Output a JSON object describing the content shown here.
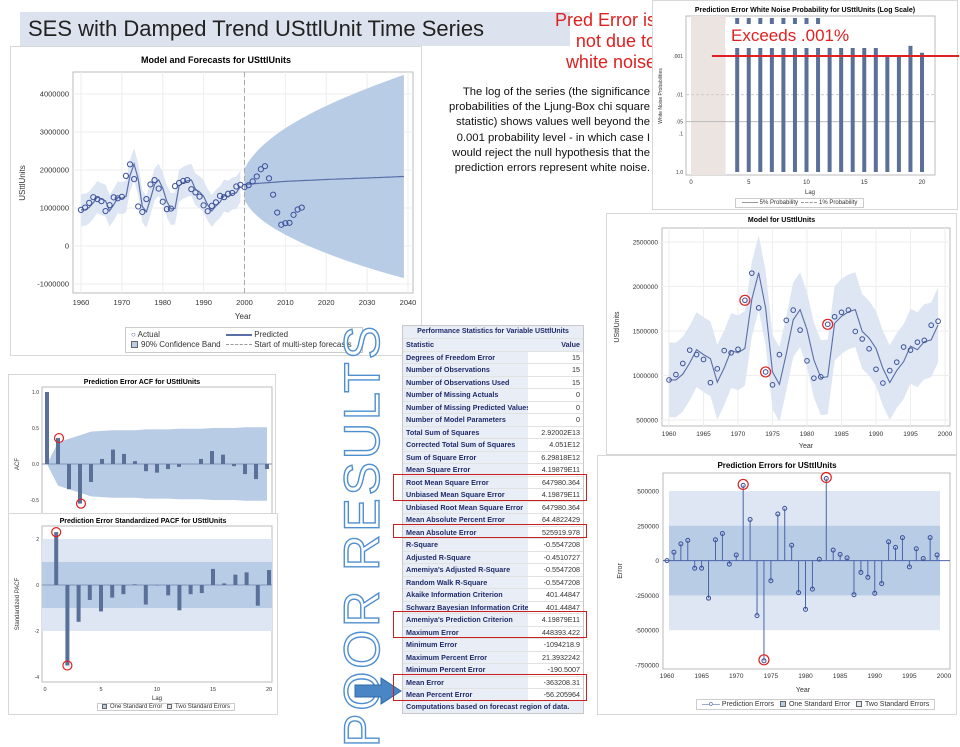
{
  "slide": {
    "title": "SES with Damped Trend USttlUnit Time Series",
    "red_note": [
      "Pred Error is",
      "not due to",
      "white noise"
    ],
    "exceeds_note": "Exceeds .001%",
    "paragraph": "The log of the series (the significance probabilities of the Ljung-Box chi square statistic) shows values well beyond the 0.001 probability level - in which case I would reject the null hypothesis that the prediction errors represent white noise.",
    "poor_results": "POOR RESULTS",
    "colors": {
      "accent_red": "#e02020",
      "series_blue": "#5a6fa8",
      "band_blue": "#b8cce6",
      "poor_text": "#4f8fd0",
      "arrow": "#4a86c5"
    }
  },
  "chart_data": [
    {
      "id": "forecast",
      "type": "line",
      "title": "Model and Forecasts for USttlUnits",
      "xlabel": "Year",
      "ylabel": "USttlUnits",
      "xlim": [
        1960,
        2040
      ],
      "ylim": [
        -1000000,
        4500000
      ],
      "xticks": [
        1960,
        1970,
        1980,
        1990,
        2000,
        2010,
        2020,
        2030,
        2040
      ],
      "yticks": [
        -1000000,
        0,
        1000000,
        2000000,
        3000000,
        4000000
      ],
      "forecast_start": 2000,
      "actual_years_start": 1960,
      "actual": [
        950000,
        1010000,
        1135000,
        1285000,
        1235000,
        1180000,
        920000,
        1075000,
        1280000,
        1255000,
        1295000,
        1845000,
        2150000,
        1760000,
        1040000,
        895000,
        1235000,
        1620000,
        1735000,
        1510000,
        1165000,
        970000,
        985000,
        1575000,
        1660000,
        1710000,
        1735000,
        1495000,
        1410000,
        1300000,
        1070000,
        915000,
        1055000,
        1150000,
        1320000,
        1285000,
        1375000,
        1395000,
        1565000,
        1610000,
        1550000,
        1600000,
        1700000,
        1830000,
        2020000,
        2100000,
        1780000,
        1350000,
        880000,
        560000,
        600000,
        610000,
        820000,
        960000,
        1010000
      ],
      "forecast": {
        "years": [
          2000,
          2010,
          2020,
          2030,
          2039
        ],
        "values": [
          1620000,
          1700000,
          1750000,
          1790000,
          1830000
        ]
      },
      "forecast_band_end": [
        -850000,
        4500000
      ],
      "legend": [
        "Actual",
        "Predicted",
        "90% Confidence Band",
        "Start of multi-step forecasts"
      ],
      "legend_position": "bottom"
    },
    {
      "id": "whitenoise",
      "type": "bar",
      "title": "Prediction Error White Noise Probability for USttlUnits (Log Scale)",
      "xlabel": "Lag",
      "ylabel": "White Noise Probabilities",
      "yscale": "log-reversed",
      "xticks": [
        0,
        5,
        10,
        15,
        20
      ],
      "ytick_labels": [
        ".001",
        ".01",
        ".05",
        ".1",
        "1.0"
      ],
      "ytick_values": [
        0.001,
        0.01,
        0.05,
        0.1,
        1.0
      ],
      "lags": [
        4,
        5,
        6,
        7,
        8,
        9,
        10,
        11,
        12,
        13,
        14,
        15,
        16,
        17,
        18,
        19,
        20
      ],
      "probabilities": [
        1e-05,
        1e-05,
        1e-05,
        1e-05,
        1e-05,
        1e-05,
        1e-05,
        1e-05,
        0.00056,
        0.00056,
        0.0006,
        0.00057,
        0.00056,
        0.00095,
        0.00097,
        0.00055,
        0.00083
      ],
      "shaded_lags": [
        0,
        3
      ],
      "reference_lines": {
        "5% Probability": 0.05,
        "1% Probability": 0.01
      },
      "legend": [
        "5% Probability",
        "1% Probability"
      ],
      "highlight_level": 0.001
    },
    {
      "id": "model",
      "type": "line",
      "title": "Model for USttlUnits",
      "xlabel": "Year",
      "ylabel": "USttlUnits",
      "xlim": [
        1960,
        2000
      ],
      "ylim": [
        450000,
        2600000
      ],
      "xticks": [
        1960,
        1965,
        1970,
        1975,
        1980,
        1985,
        1990,
        1995,
        2000
      ],
      "yticks": [
        500000,
        1000000,
        1500000,
        2000000,
        2500000
      ],
      "circled_years": [
        1971,
        1974,
        1983
      ]
    },
    {
      "id": "errors",
      "type": "scatter",
      "title": "Prediction Errors for USttlUnits",
      "xlabel": "Year",
      "ylabel": "Error",
      "xlim": [
        1960,
        2000
      ],
      "ylim": [
        -780000,
        620000
      ],
      "xticks": [
        1960,
        1965,
        1970,
        1975,
        1980,
        1985,
        1990,
        1995,
        2000
      ],
      "yticks": [
        -750000,
        -500000,
        -250000,
        0,
        250000,
        500000
      ],
      "years_start": 1960,
      "values": [
        0,
        60000,
        120000,
        145000,
        -55000,
        -55000,
        -270000,
        150000,
        195000,
        -25000,
        40000,
        540000,
        295000,
        -395000,
        -720000,
        -145000,
        335000,
        375000,
        110000,
        -230000,
        -350000,
        -205000,
        10000,
        590000,
        75000,
        45000,
        20000,
        -245000,
        -85000,
        -120000,
        -235000,
        -165000,
        135000,
        95000,
        165000,
        -45000,
        85000,
        15000,
        165000,
        40000
      ],
      "one_std_error": 250000,
      "two_std_error": 500000,
      "circled_years": [
        1971,
        1974,
        1983
      ],
      "legend": [
        "Prediction Errors",
        "One Standard Error",
        "Two Standard Errors"
      ]
    },
    {
      "id": "acf",
      "type": "bar",
      "title": "Prediction Error ACF for USttlUnits",
      "ylabel": "ACF",
      "ylim": [
        -0.7,
        1.05
      ],
      "yticks": [
        -0.5,
        0.0,
        0.5,
        1.0
      ],
      "ytick_labels": [
        "-0.5",
        "0.0",
        "0.5",
        "1.0"
      ],
      "values": [
        1.0,
        0.36,
        -0.35,
        -0.55,
        -0.25,
        0.07,
        0.2,
        0.14,
        0.04,
        -0.1,
        -0.12,
        -0.07,
        -0.04,
        0.0,
        0.07,
        0.18,
        0.13,
        -0.03,
        -0.14,
        -0.21,
        -0.07
      ],
      "band": [
        0,
        0.3,
        0.35,
        0.4,
        0.45,
        0.46,
        0.47,
        0.47,
        0.47,
        0.48,
        0.48,
        0.48,
        0.49,
        0.49,
        0.49,
        0.5,
        0.5,
        0.5,
        0.51,
        0.51,
        0.51
      ],
      "circled_lags": [
        1,
        3
      ]
    },
    {
      "id": "pacf",
      "type": "bar",
      "title": "Prediction Error Standardized PACF for USttlUnits",
      "xlabel": "Lag",
      "ylabel": "Standardized PACF",
      "ylim": [
        -4.2,
        2.4
      ],
      "xticks": [
        0,
        5,
        10,
        15,
        20
      ],
      "yticks": [
        -4,
        -2,
        0,
        2
      ],
      "values": [
        2.3,
        -3.5,
        -1.6,
        -0.65,
        -1.15,
        -0.55,
        -0.4,
        0.03,
        -0.85,
        -0.02,
        -0.45,
        -1.1,
        -0.4,
        -0.35,
        0.7,
        0.07,
        0.45,
        0.55,
        -0.9,
        0.65
      ],
      "circled_lags": [
        1,
        2
      ],
      "legend": [
        "One Standard Error",
        "Two Standard Errors"
      ]
    }
  ],
  "table": {
    "title": "Performance Statistics for Variable USttlUnits",
    "headers": [
      "Statistic",
      "Value"
    ],
    "rows": [
      [
        "Degrees of Freedom Error",
        "15"
      ],
      [
        "Number of Observations",
        "15"
      ],
      [
        "Number of Observations Used",
        "15"
      ],
      [
        "Number of Missing Actuals",
        "0"
      ],
      [
        "Number of Missing Predicted Values",
        "0"
      ],
      [
        "Number of Model Parameters",
        "0"
      ],
      [
        "Total Sum of Squares",
        "2.92002E13"
      ],
      [
        "Corrected Total Sum of Squares",
        "4.051E12"
      ],
      [
        "Sum of Square Error",
        "6.29818E12"
      ],
      [
        "Mean Square Error",
        "4.19879E11"
      ],
      [
        "Root Mean Square Error",
        "647980.364"
      ],
      [
        "Unbiased Mean Square Error",
        "4.19879E11"
      ],
      [
        "Unbiased Root Mean Square Error",
        "647980.364"
      ],
      [
        "Mean Absolute Percent Error",
        "64.4822429"
      ],
      [
        "Mean Absolute Error",
        "525919.978"
      ],
      [
        "R-Square",
        "-0.5547208"
      ],
      [
        "Adjusted R-Square",
        "-0.4510727"
      ],
      [
        "Amemiya's Adjusted R-Square",
        "-0.5547208"
      ],
      [
        "Random Walk R-Square",
        "-0.5547208"
      ],
      [
        "Akaike Information Criterion",
        "401.44847"
      ],
      [
        "Schwarz Bayesian Information Criterion",
        "401.44847"
      ],
      [
        "Amemiya's Prediction Criterion",
        "4.19879E11"
      ],
      [
        "Maximum Error",
        "448393.422"
      ],
      [
        "Minimum Error",
        "-1094218.9"
      ],
      [
        "Maximum Percent Error",
        "21.3932242"
      ],
      [
        "Minimum Percent Error",
        "-190.5007"
      ],
      [
        "Mean Error",
        "-363208.31"
      ],
      [
        "Mean Percent Error",
        "-56.205964"
      ]
    ],
    "footnote": "Computations based on forecast region of data.",
    "highlighted_row_groups": [
      [
        10,
        11
      ],
      [
        14
      ],
      [
        21,
        22
      ],
      [
        26,
        27
      ]
    ]
  }
}
